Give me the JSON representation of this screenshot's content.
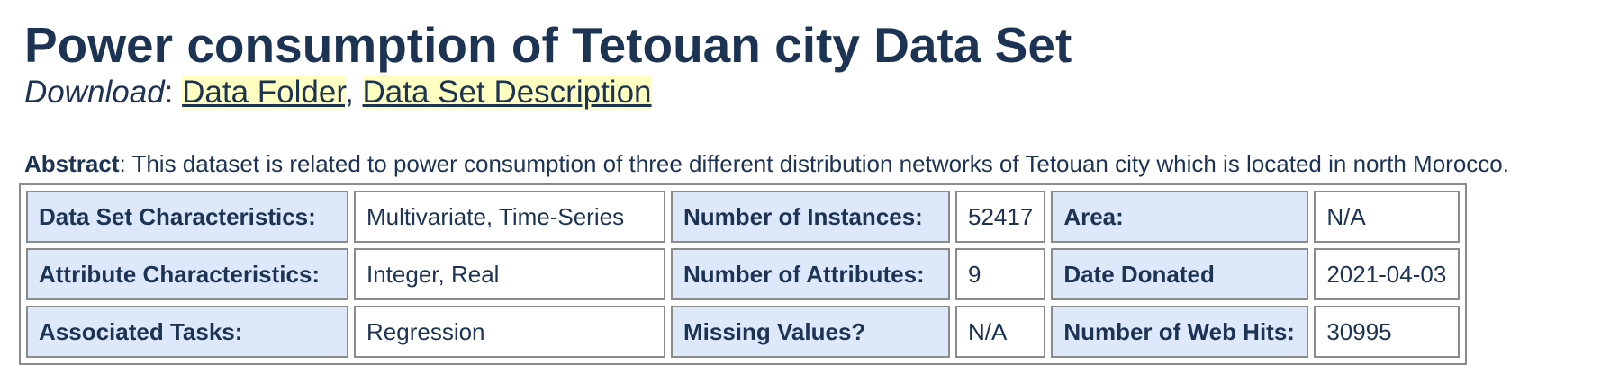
{
  "header": {
    "title": "Power consumption of Tetouan city Data Set",
    "download_label": "Download",
    "download_separator": ":",
    "links": {
      "data_folder": "Data Folder",
      "comma": ",",
      "description": "Data Set Description"
    }
  },
  "abstract": {
    "label": "Abstract",
    "text": ": This dataset is related to power consumption of three different distribution networks of Tetouan city which is located in north Morocco."
  },
  "specs": {
    "rows": [
      {
        "k1": "Data Set Characteristics:",
        "v1": "Multivariate, Time-Series",
        "k2": "Number of Instances:",
        "v2": "52417",
        "k3": "Area:",
        "v3": "N/A"
      },
      {
        "k1": "Attribute Characteristics:",
        "v1": "Integer, Real",
        "k2": "Number of Attributes:",
        "v2": "9",
        "k3": "Date Donated",
        "v3": "2021-04-03"
      },
      {
        "k1": "Associated Tasks:",
        "v1": "Regression",
        "k2": "Missing Values?",
        "v2": "N/A",
        "k3": "Number of Web Hits:",
        "v3": "30995"
      }
    ]
  },
  "colors": {
    "text": "#1c3354",
    "key_cell_bg": "#dde9fb",
    "link_highlight": "#ffffc2",
    "border": "#8b8b8b"
  }
}
